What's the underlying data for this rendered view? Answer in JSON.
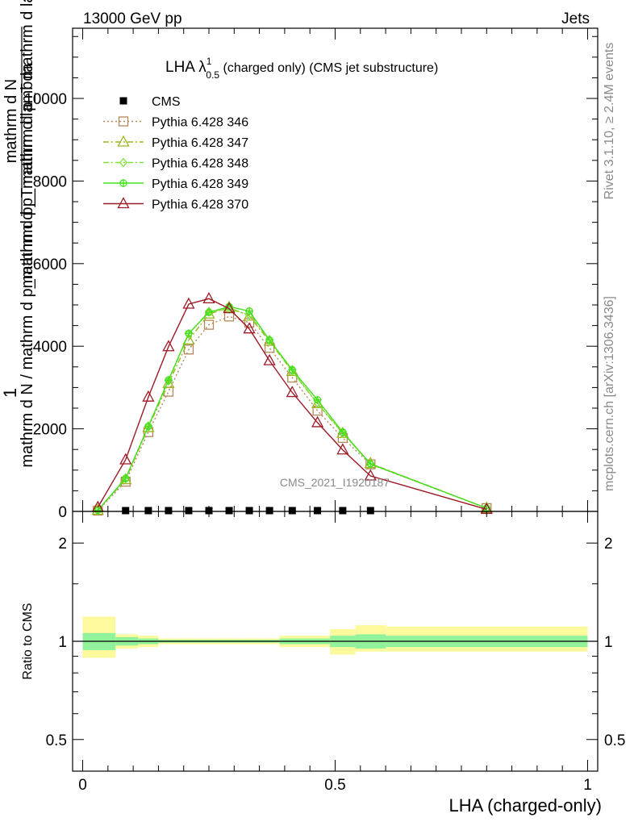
{
  "header": {
    "left": "13000 GeV pp",
    "right": "Jets"
  },
  "side_labels": {
    "rivet": "Rivet 3.1.10, ≥ 2.4M events",
    "mcplots": "mcplots.cern.ch [arXiv:1306.3436]"
  },
  "watermark": "CMS_2021_I1920187",
  "top_title": {
    "main": "LHA λ",
    "sup": "1",
    "sub": "0.5",
    "rest": " (charged only) (CMS jet substructure)"
  },
  "ylabel": {
    "numer_one": "1",
    "numer": "mathrm d N",
    "denom": "mathrm d N / mathrm d p_mathrm d p_mathrm d lambda",
    "frac_top": "mathrm d N",
    "frac_bottom": "mathrm d p_T mathrm d p_T mathrm d lambda"
  },
  "ratio_ylabel": "Ratio to CMS",
  "xlabel": "LHA (charged-only)",
  "chart_data": [
    {
      "type": "line",
      "title": "LHA λ^1_0.5 (charged only) (CMS jet substructure)",
      "xlabel": "LHA (charged-only)",
      "ylabel": "mathrm d N / mathrm d p_mathrm d p_mathrm d lambda",
      "xlim": [
        -0.02,
        1.02
      ],
      "ylim": [
        0,
        11700
      ],
      "yticks": [
        0,
        2000,
        4000,
        6000,
        8000,
        10000
      ],
      "ytick_labels": [
        "0",
        "2000",
        "4000",
        "6000",
        "8000",
        "10000"
      ],
      "legend_position": "top-left",
      "series": [
        {
          "name": "CMS",
          "color": "#000000",
          "marker": "square-filled",
          "x": [
            0.085,
            0.13,
            0.17,
            0.21,
            0.25,
            0.29,
            0.33,
            0.37,
            0.415,
            0.465,
            0.515,
            0.57
          ],
          "y": [
            0,
            0,
            0,
            0,
            0,
            0,
            0,
            0,
            0,
            0,
            0,
            0
          ]
        },
        {
          "name": "Pythia 6.428 346",
          "color": "#b5885a",
          "dash": "dotted",
          "marker": "square-open",
          "x": [
            0.03,
            0.085,
            0.13,
            0.17,
            0.21,
            0.25,
            0.29,
            0.33,
            0.37,
            0.415,
            0.465,
            0.515,
            0.57,
            0.8
          ],
          "y": [
            20,
            720,
            1920,
            2900,
            3920,
            4520,
            4720,
            4570,
            3960,
            3240,
            2440,
            1780,
            1140,
            80
          ]
        },
        {
          "name": "Pythia 6.428 347",
          "color": "#9cb51d",
          "dash": "dashdot",
          "marker": "triangle-open",
          "x": [
            0.03,
            0.085,
            0.13,
            0.17,
            0.21,
            0.25,
            0.29,
            0.33,
            0.37,
            0.415,
            0.465,
            0.515,
            0.57,
            0.8
          ],
          "y": [
            30,
            770,
            2030,
            3100,
            4150,
            4780,
            4940,
            4730,
            4120,
            3390,
            2610,
            1890,
            1160,
            80
          ]
        },
        {
          "name": "Pythia 6.428 348",
          "color": "#7de43c",
          "dash": "dashdot",
          "marker": "diamond-open",
          "x": [
            0.03,
            0.085,
            0.13,
            0.17,
            0.21,
            0.25,
            0.29,
            0.33,
            0.37,
            0.415,
            0.465,
            0.515,
            0.57,
            0.8
          ],
          "y": [
            30,
            790,
            2060,
            3160,
            4300,
            4840,
            4900,
            4760,
            4150,
            3400,
            2620,
            1900,
            1150,
            80
          ]
        },
        {
          "name": "Pythia 6.428 349",
          "color": "#44e01e",
          "dash": "solid",
          "marker": "cross-circle",
          "x": [
            0.03,
            0.085,
            0.13,
            0.17,
            0.21,
            0.25,
            0.29,
            0.33,
            0.37,
            0.415,
            0.465,
            0.515,
            0.57,
            0.8
          ],
          "y": [
            30,
            800,
            2060,
            3180,
            4310,
            4820,
            4960,
            4850,
            4150,
            3430,
            2700,
            1920,
            1150,
            80
          ]
        },
        {
          "name": "Pythia 6.428 370",
          "color": "#9c1a26",
          "dash": "solid",
          "marker": "triangle-open",
          "x": [
            0.03,
            0.085,
            0.13,
            0.17,
            0.21,
            0.25,
            0.29,
            0.33,
            0.37,
            0.415,
            0.465,
            0.515,
            0.57,
            0.8
          ],
          "y": [
            100,
            1250,
            2770,
            3990,
            5020,
            5150,
            4910,
            4420,
            3650,
            2880,
            2150,
            1490,
            860,
            50
          ]
        }
      ]
    },
    {
      "type": "area",
      "ylabel": "Ratio to CMS",
      "xlabel": "LHA (charged-only)",
      "xlim": [
        -0.02,
        1.02
      ],
      "ylim": [
        0.35,
        2.3
      ],
      "yticks": [
        0.5,
        1,
        2
      ],
      "ytick_labels": [
        "0.5",
        "1",
        "2"
      ],
      "xticks": [
        0,
        0.5,
        1
      ],
      "xtick_labels": [
        "0",
        "0.5",
        "1"
      ],
      "reference_line": 1,
      "bands": {
        "x_edges": [
          0.0,
          0.065,
          0.11,
          0.15,
          0.19,
          0.23,
          0.27,
          0.31,
          0.35,
          0.39,
          0.44,
          0.49,
          0.54,
          0.6,
          1.0
        ],
        "inner_lo": [
          0.94,
          0.97,
          0.98,
          0.99,
          0.99,
          0.99,
          0.99,
          0.99,
          0.99,
          0.98,
          0.98,
          0.96,
          0.95,
          0.96
        ],
        "inner_hi": [
          1.06,
          1.03,
          1.02,
          1.01,
          1.01,
          1.01,
          1.01,
          1.01,
          1.01,
          1.02,
          1.02,
          1.04,
          1.05,
          1.04
        ],
        "outer_lo": [
          0.89,
          0.95,
          0.96,
          0.98,
          0.98,
          0.98,
          0.98,
          0.98,
          0.98,
          0.96,
          0.96,
          0.91,
          0.93,
          0.93
        ],
        "outer_hi": [
          1.19,
          1.05,
          1.04,
          1.02,
          1.02,
          1.02,
          1.02,
          1.02,
          1.02,
          1.04,
          1.04,
          1.09,
          1.12,
          1.11
        ],
        "inner_color": "#90f29a",
        "outer_color": "#fcfa9c"
      }
    }
  ]
}
